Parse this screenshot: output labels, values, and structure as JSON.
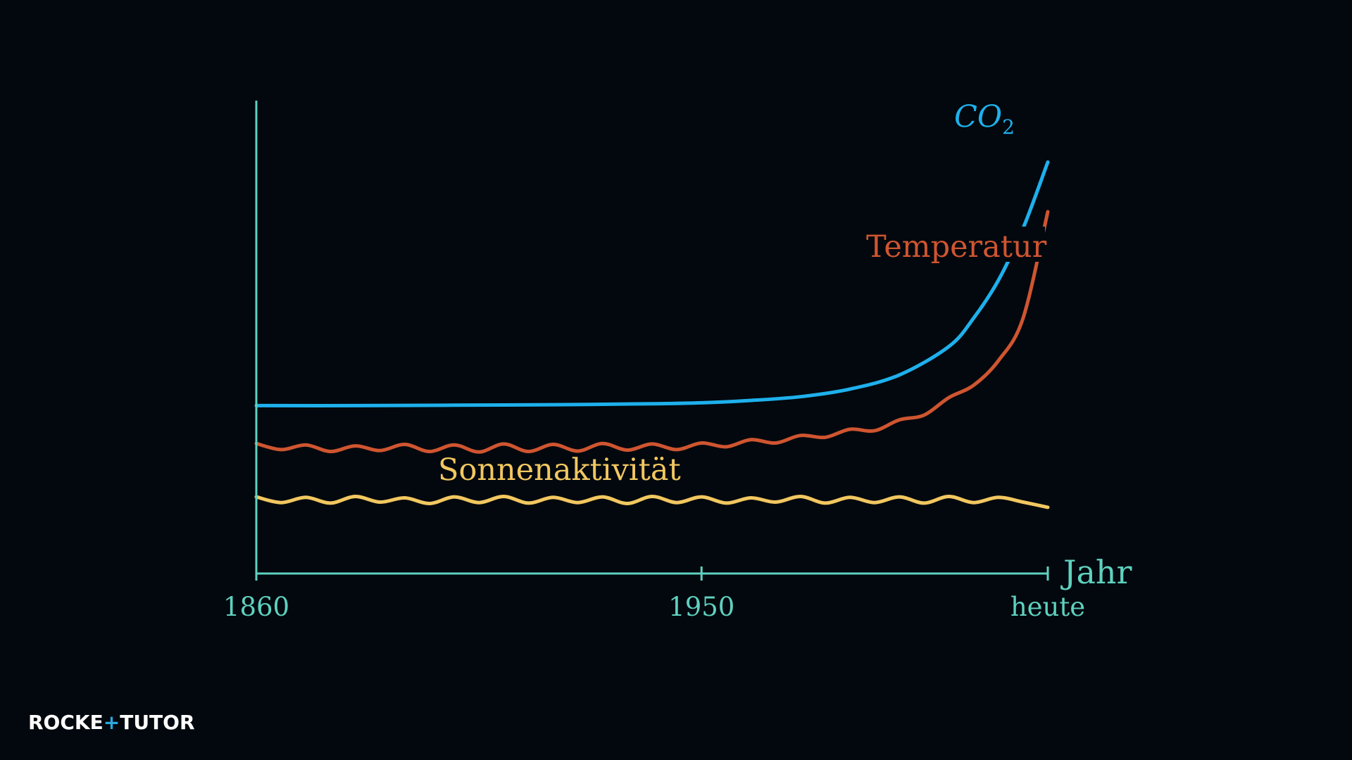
{
  "chart_data": {
    "type": "line",
    "xlabel": "Jahr",
    "ylabel": "",
    "x_ticks": [
      "1860",
      "1950",
      "heute"
    ],
    "x_tick_values": [
      1860,
      1950,
      2020
    ],
    "xlim": [
      1860,
      2020
    ],
    "ylim": [
      0,
      1
    ],
    "grid": false,
    "y_axis_ticks": false,
    "series": [
      {
        "name": "CO₂",
        "label_main": "CO",
        "label_sub": "2",
        "color": "#1eb0ec",
        "x": [
          1860,
          1880,
          1900,
          1920,
          1940,
          1950,
          1960,
          1970,
          1980,
          1990,
          2000,
          2005,
          2010,
          2015,
          2020
        ],
        "y": [
          0.355,
          0.355,
          0.356,
          0.357,
          0.359,
          0.361,
          0.366,
          0.374,
          0.39,
          0.42,
          0.48,
          0.54,
          0.62,
          0.73,
          0.87
        ]
      },
      {
        "name": "Temperatur",
        "color": "#cf5530",
        "x": [
          1860,
          1865,
          1870,
          1875,
          1880,
          1885,
          1890,
          1895,
          1900,
          1905,
          1910,
          1915,
          1920,
          1925,
          1930,
          1935,
          1940,
          1945,
          1950,
          1955,
          1960,
          1965,
          1970,
          1975,
          1980,
          1985,
          1990,
          1995,
          2000,
          2005,
          2010,
          2015,
          2020
        ],
        "y": [
          0.275,
          0.262,
          0.272,
          0.258,
          0.27,
          0.26,
          0.273,
          0.258,
          0.272,
          0.257,
          0.274,
          0.258,
          0.273,
          0.259,
          0.275,
          0.261,
          0.274,
          0.262,
          0.276,
          0.268,
          0.283,
          0.276,
          0.292,
          0.288,
          0.305,
          0.302,
          0.325,
          0.335,
          0.372,
          0.398,
          0.45,
          0.54,
          0.765
        ]
      },
      {
        "name": "Sonnenaktivität",
        "color": "#f2c760",
        "x": [
          1860,
          1865,
          1870,
          1875,
          1880,
          1885,
          1890,
          1895,
          1900,
          1905,
          1910,
          1915,
          1920,
          1925,
          1930,
          1935,
          1940,
          1945,
          1950,
          1955,
          1960,
          1965,
          1970,
          1975,
          1980,
          1985,
          1990,
          1995,
          2000,
          2005,
          2010,
          2015,
          2020
        ],
        "y": [
          0.162,
          0.15,
          0.161,
          0.149,
          0.163,
          0.151,
          0.16,
          0.148,
          0.162,
          0.15,
          0.163,
          0.149,
          0.161,
          0.15,
          0.162,
          0.148,
          0.163,
          0.15,
          0.162,
          0.149,
          0.16,
          0.151,
          0.163,
          0.149,
          0.161,
          0.15,
          0.162,
          0.149,
          0.163,
          0.15,
          0.161,
          0.151,
          0.14
        ]
      }
    ]
  },
  "logo": {
    "part1": "ROCKE",
    "plus": "+",
    "part2": "TUTOR",
    "brand_color": "#2aa8e0"
  }
}
